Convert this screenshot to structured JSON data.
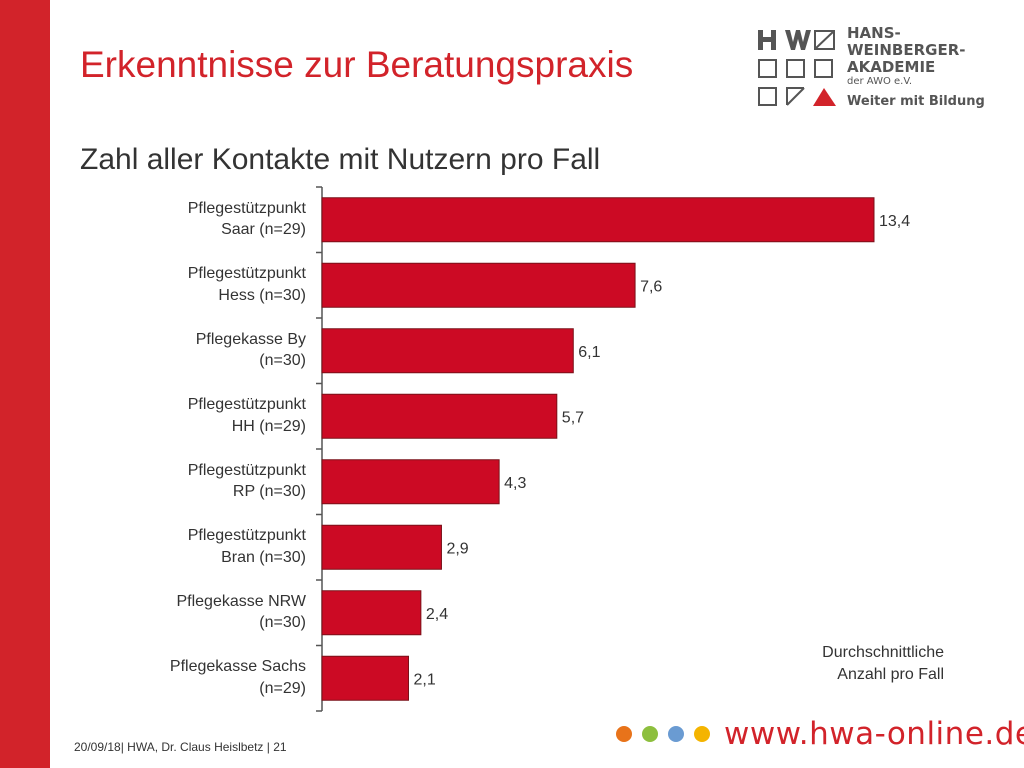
{
  "slide": {
    "title": "Erkenntnisse zur Beratungspraxis",
    "subtitle": "Zahl aller Kontakte mit Nutzern pro Fall",
    "footer": "20/09/18| HWA, Dr. Claus Heislbetz | 21",
    "website": "www.hwa-online.de"
  },
  "logo": {
    "line1": "HANS-",
    "line2": "WEINBERGER-",
    "line3": "AKADEMIE",
    "line4": "der AWO e.V.",
    "tagline": "Weiter mit Bildung"
  },
  "colors": {
    "accent": "#d2232a",
    "bar": "#cc0a24",
    "dots": [
      "#e8731a",
      "#8dbf3e",
      "#6a9bd2",
      "#f4b400"
    ]
  },
  "chart_data": {
    "type": "bar",
    "orientation": "horizontal",
    "categories": [
      [
        "Pflegestützpunkt",
        "Saar (n=29)"
      ],
      [
        "Pflegestützpunkt",
        "Hess (n=30)"
      ],
      [
        "Pflegekasse By",
        "(n=30)"
      ],
      [
        "Pflegestützpunkt",
        "HH (n=29)"
      ],
      [
        "Pflegestützpunkt",
        "RP (n=30)"
      ],
      [
        "Pflegestützpunkt",
        "Bran (n=30)"
      ],
      [
        "Pflegekasse NRW",
        "(n=30)"
      ],
      [
        "Pflegekasse Sachs",
        "(n=29)"
      ]
    ],
    "values": [
      13.4,
      7.6,
      6.1,
      5.7,
      4.3,
      2.9,
      2.4,
      2.1
    ],
    "value_labels": [
      "13,4",
      "7,6",
      "6,1",
      "5,7",
      "4,3",
      "2,9",
      "2,4",
      "2,1"
    ],
    "xlim": [
      0,
      13.4
    ],
    "annotation": [
      "Durchschnittliche",
      "Anzahl pro Fall"
    ],
    "grid": false
  }
}
